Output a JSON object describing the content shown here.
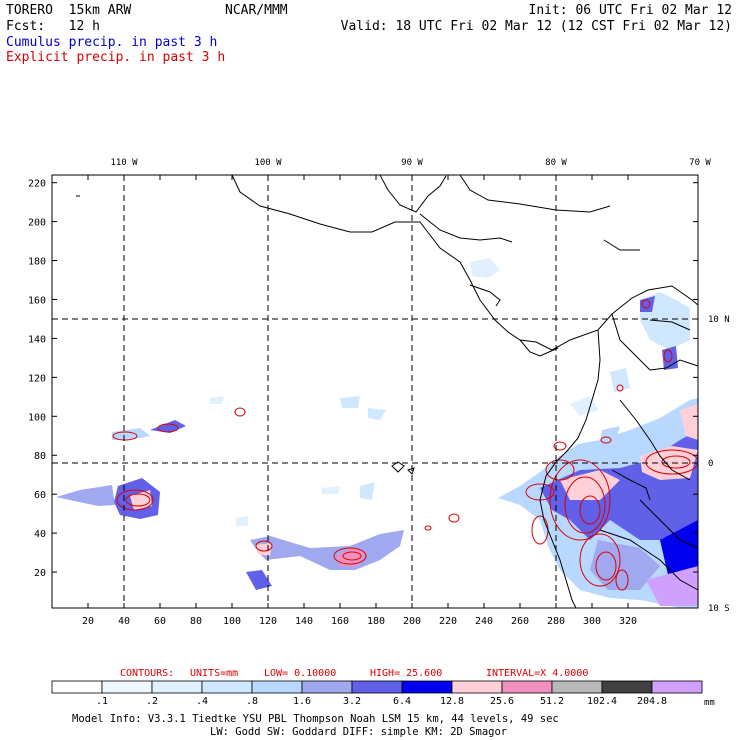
{
  "header": {
    "model": "TORERO  15km ARW",
    "org": "NCAR/MMM",
    "init": "Init: 06 UTC Fri 02 Mar 12",
    "fcst": "Fcst:   12 h",
    "valid": "Valid: 18 UTC Fri 02 Mar 12 (12 CST Fri 02 Mar 12)",
    "field1": "Cumulus precip. in past 3 h",
    "field2": "Explicit precip. in past 3 h"
  },
  "colors": {
    "field1": "#0000cc",
    "field2": "#dd0000"
  },
  "map": {
    "lon_labels": [
      "110 W",
      "100 W",
      "90 W",
      "80 W",
      "70 W"
    ],
    "lat_labels": [
      "10 N",
      "0",
      "10 S"
    ],
    "x_ticks": [
      "20",
      "40",
      "60",
      "80",
      "100",
      "120",
      "140",
      "160",
      "180",
      "200",
      "220",
      "240",
      "260",
      "280",
      "300",
      "320"
    ],
    "y_ticks": [
      "20",
      "40",
      "60",
      "80",
      "100",
      "120",
      "140",
      "160",
      "180",
      "200",
      "220"
    ]
  },
  "contours_line": {
    "label": "CONTOURS:",
    "units": "UNITS=mm",
    "low": "LOW= 0.10000",
    "high": "HIGH=  25.600",
    "interval": "INTERVAL=X  4.0000"
  },
  "colorbar": {
    "labels": [
      ".1",
      ".2",
      ".4",
      ".8",
      "1.6",
      "3.2",
      "6.4",
      "12.8",
      "25.6",
      "51.2",
      "102.4",
      "204.8"
    ],
    "unit": "mm",
    "colors": [
      "#ffffff",
      "#f0f8ff",
      "#e0f0ff",
      "#d0e8ff",
      "#b8d8ff",
      "#a0a8f0",
      "#6060e8",
      "#0000ee",
      "#ffd0d8",
      "#f090c0",
      "#b8b8b8",
      "#404040",
      "#d0a0ff"
    ]
  },
  "footer": {
    "line1": "Model Info: V3.3.1    Tiedtke YSU PBL  Thompson    Noah LSM  15 km,   44 levels,   49 sec",
    "line2": "LW: Godd SW: Goddard DIFF: simple KM: 2D Smagor"
  }
}
